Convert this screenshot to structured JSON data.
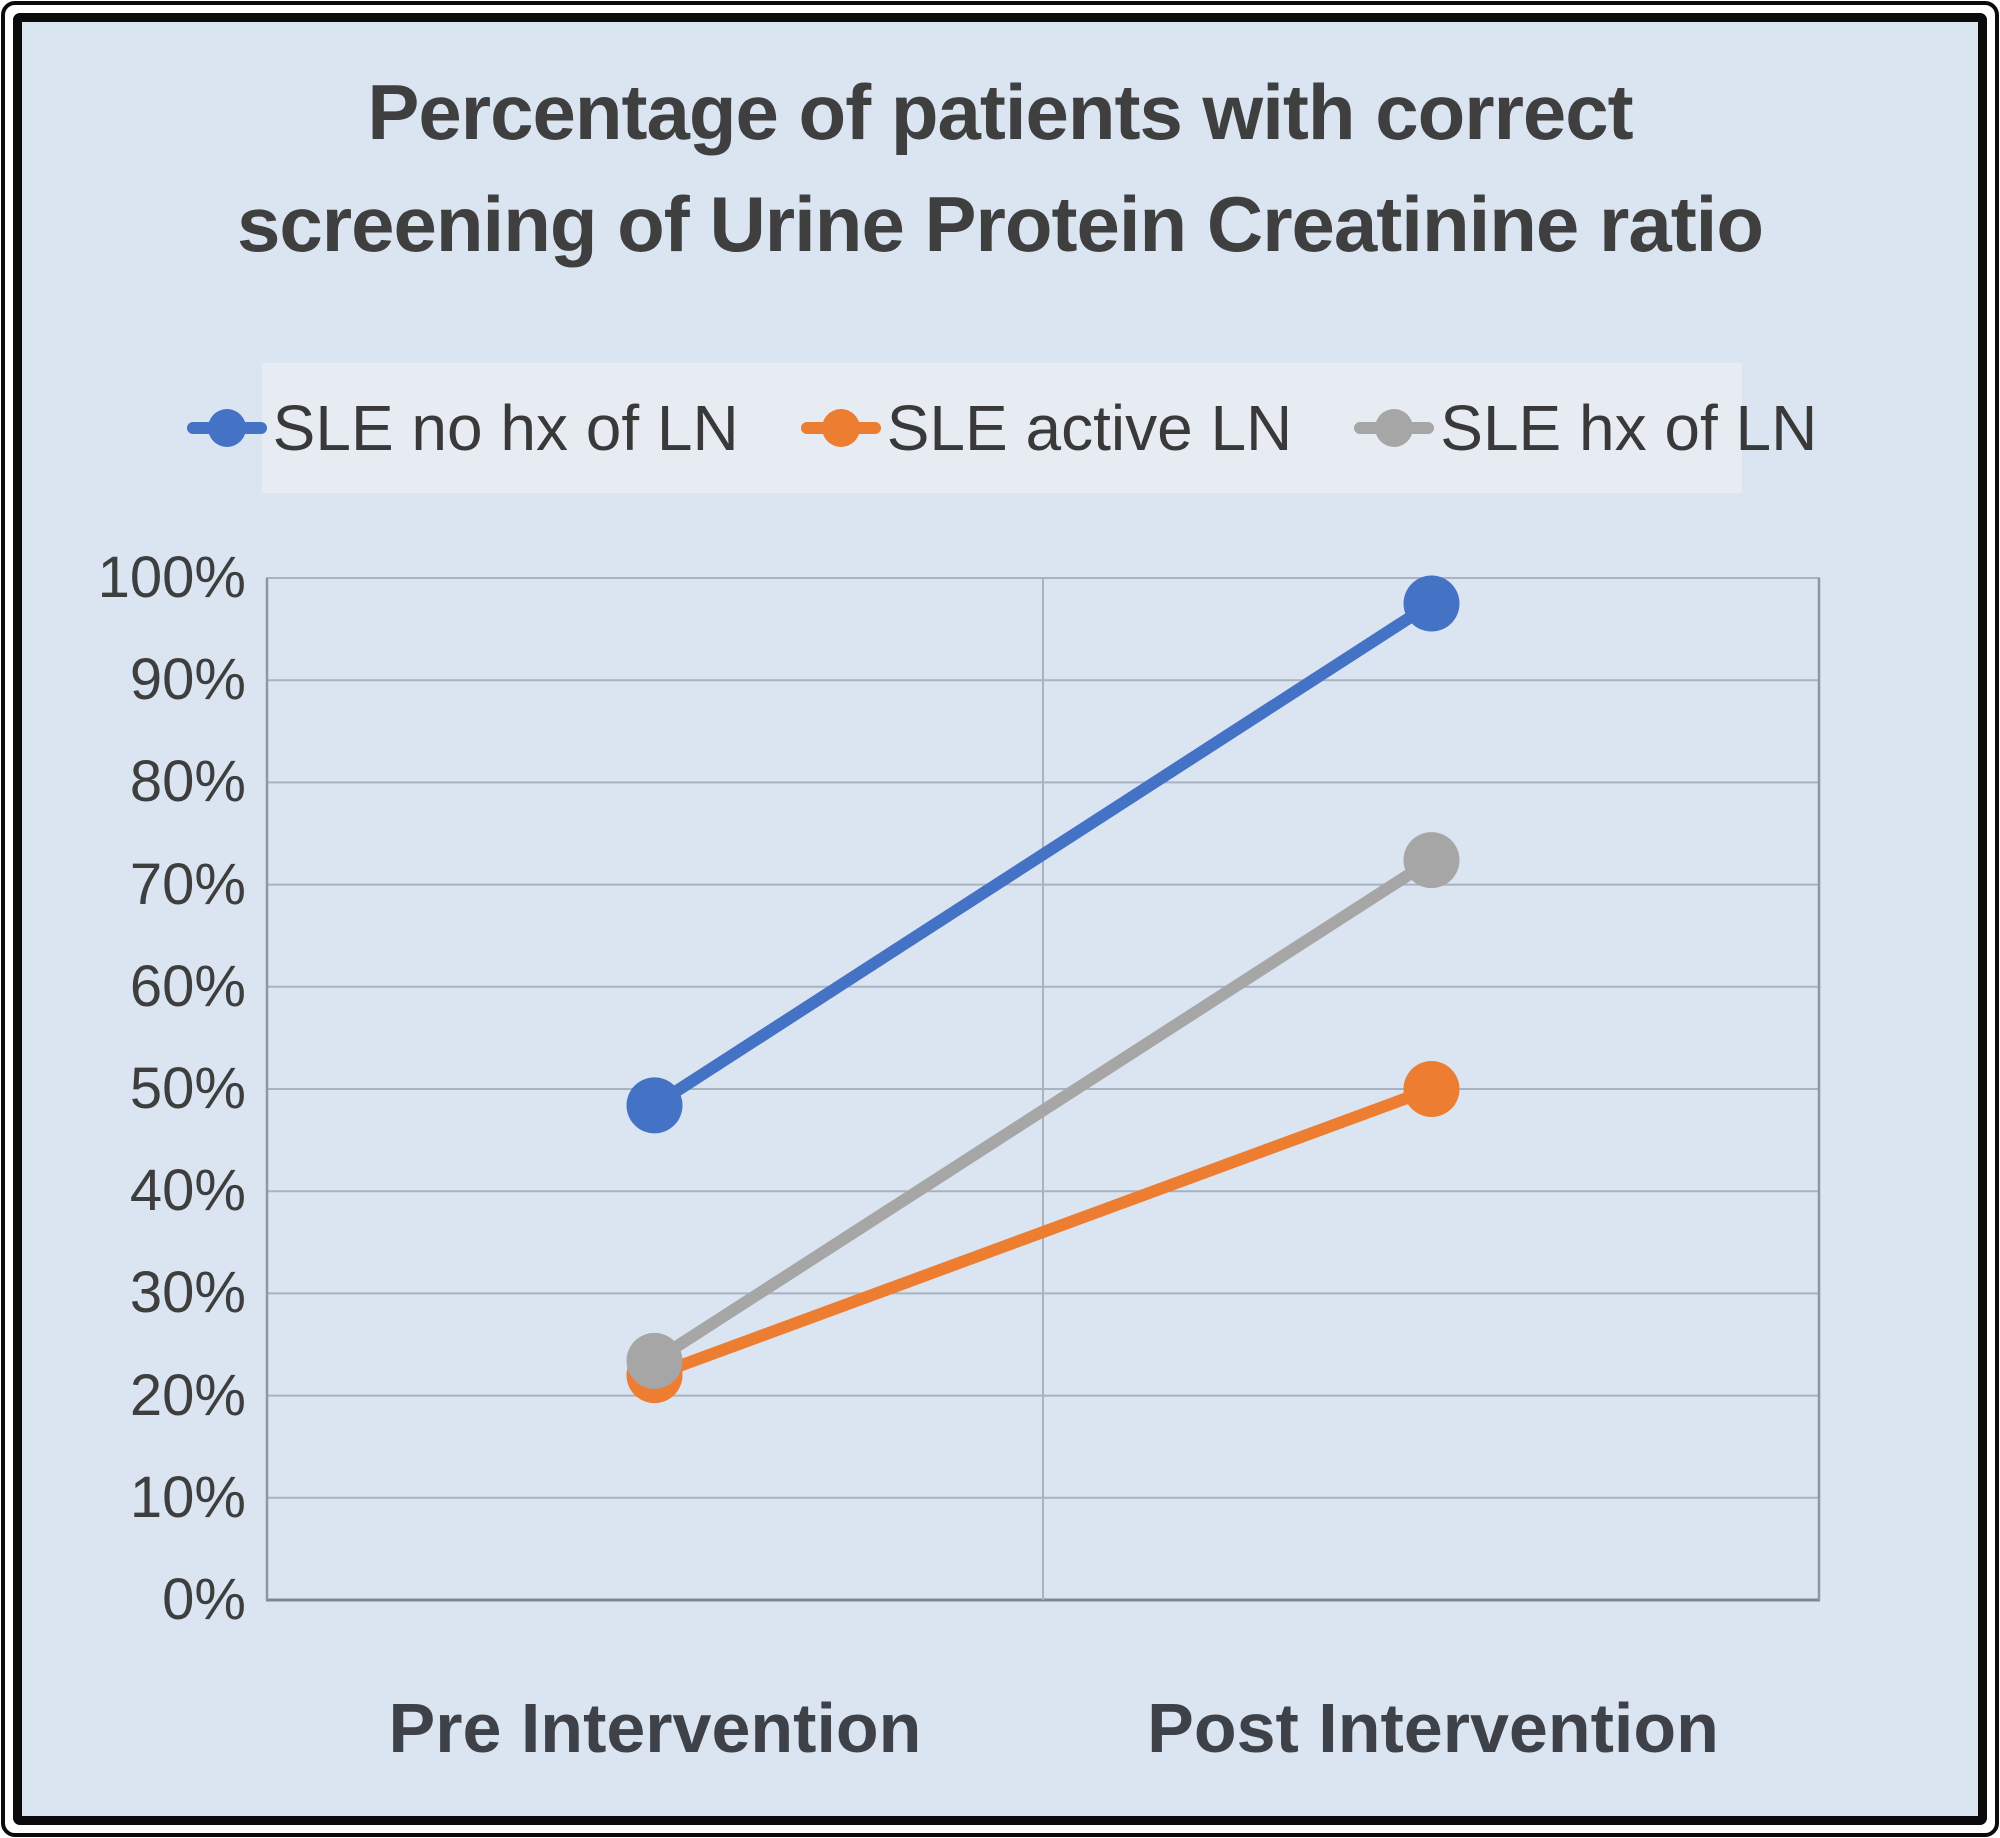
{
  "title": {
    "line1": "Percentage of patients with correct",
    "line2": "screening of Urine Protein Creatinine ratio"
  },
  "chart_data": {
    "type": "line",
    "categories": [
      "Pre Intervention",
      "Post Intervention"
    ],
    "series": [
      {
        "name": "SLE no hx of LN",
        "color": "#4472C4",
        "values": [
          48.4,
          97.5
        ]
      },
      {
        "name": "SLE active LN",
        "color": "#ED7D31",
        "values": [
          22.0,
          50.0
        ]
      },
      {
        "name": "SLE hx of LN",
        "color": "#A6A6A6",
        "values": [
          23.4,
          72.4
        ]
      }
    ],
    "title": "Percentage of patients with correct screening of Urine Protein Creatinine ratio",
    "xlabel": "",
    "ylabel": "",
    "ylim": [
      0,
      100
    ],
    "y_tick_labels": [
      "0%",
      "10%",
      "20%",
      "30%",
      "40%",
      "50%",
      "60%",
      "70%",
      "80%",
      "90%",
      "100%"
    ],
    "grid": true,
    "legend_position": "top",
    "marker": "circle"
  },
  "colors": {
    "chart_background": "#DBE5F2",
    "legend_background": "#E7ECF3",
    "frame": "#0B0B0B",
    "title_text": "#3F3F3F",
    "axis_text": "#3E3E3E",
    "gridline": "#A9B2BF",
    "plot_border": "#8D96A2",
    "baseline": "#7D8692"
  }
}
